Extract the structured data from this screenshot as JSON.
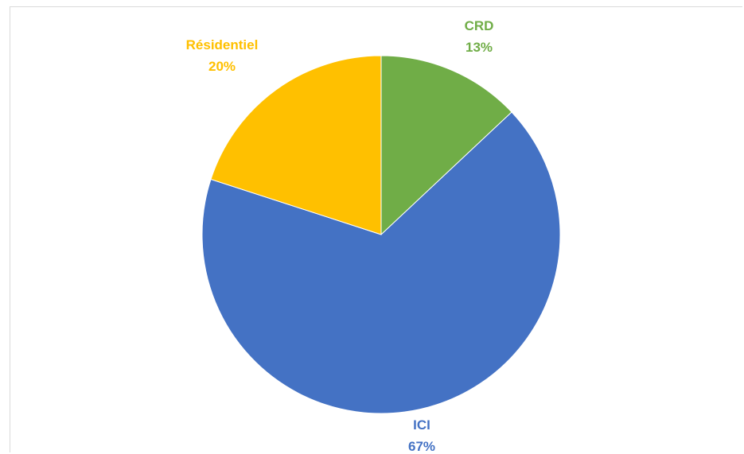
{
  "chart_data": {
    "type": "pie",
    "categories": [
      "CRD",
      "ICI",
      "Résidentiel"
    ],
    "values": [
      13,
      67,
      20
    ],
    "value_labels": [
      "13%",
      "67%",
      "20%"
    ],
    "colors": [
      "#70ad47",
      "#4472c4",
      "#ffc000"
    ],
    "start_angle_deg": 0,
    "direction": "clockwise",
    "legend": "none",
    "title": ""
  }
}
